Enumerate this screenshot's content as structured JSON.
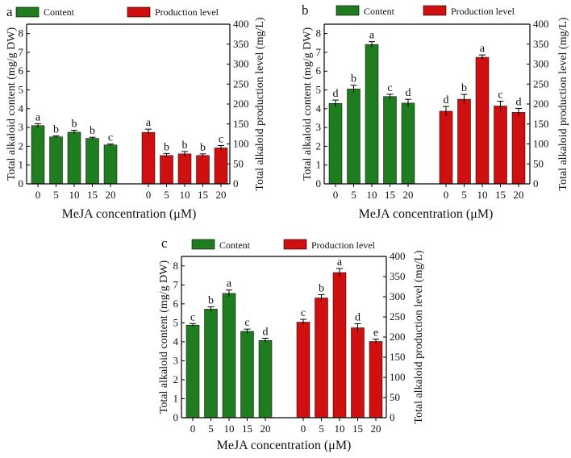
{
  "colors": {
    "content": "#1f7d1f",
    "production": "#d01010",
    "axis": "#000000"
  },
  "legend": {
    "content_label": "Content",
    "production_label": "Production level"
  },
  "x_axis_label": "MeJA  concentration (μM)",
  "left_axis_label": "Total alkaloid content (mg/g DW)",
  "right_axis_label": "Total alkaloid production level (mg/L)",
  "chart_data": [
    {
      "panel": "a",
      "type": "bar",
      "categories": [
        "0",
        "5",
        "10",
        "15",
        "20"
      ],
      "xlabel": "MeJA  concentration (μM)",
      "ylabel_left": "Total alkaloid content (mg/g DW)",
      "ylabel_right": "Total alkaloid production level (mg/L)",
      "ylim_left": [
        0,
        8.5
      ],
      "ylim_right": [
        0,
        400
      ],
      "yticks_left": [
        "0",
        "1",
        "2",
        "3",
        "4",
        "5",
        "6",
        "7",
        "8"
      ],
      "yticks_right": [
        "0",
        "50",
        "100",
        "150",
        "200",
        "250",
        "300",
        "350",
        "400"
      ],
      "series": [
        {
          "name": "Content",
          "axis": "left",
          "values": [
            3.1,
            2.5,
            2.75,
            2.42,
            2.07
          ],
          "errors": [
            0.1,
            0.05,
            0.1,
            0.06,
            0.05
          ],
          "labels": [
            "a",
            "b",
            "b",
            "b",
            "c"
          ]
        },
        {
          "name": "Production level",
          "axis": "right",
          "values": [
            129,
            71,
            75,
            71,
            90
          ],
          "errors": [
            8,
            5,
            6,
            4,
            6
          ],
          "labels": [
            "a",
            "b",
            "b",
            "b",
            "c"
          ]
        }
      ]
    },
    {
      "panel": "b",
      "type": "bar",
      "categories": [
        "0",
        "5",
        "10",
        "15",
        "20"
      ],
      "xlabel": "MeJA  concentration (μM)",
      "ylabel_left": "Total alkaloid content (mg/g DW)",
      "ylabel_right": "Total alkaloid production level (mg/L)",
      "ylim_left": [
        0,
        8.5
      ],
      "ylim_right": [
        0,
        400
      ],
      "yticks_left": [
        "0",
        "1",
        "2",
        "3",
        "4",
        "5",
        "6",
        "7",
        "8"
      ],
      "yticks_right": [
        "0",
        "50",
        "100",
        "150",
        "200",
        "250",
        "300",
        "350",
        "400"
      ],
      "series": [
        {
          "name": "Content",
          "axis": "left",
          "values": [
            4.28,
            5.05,
            7.42,
            4.65,
            4.3
          ],
          "errors": [
            0.18,
            0.2,
            0.15,
            0.12,
            0.2
          ],
          "labels": [
            "d",
            "b",
            "a",
            "c",
            "d"
          ]
        },
        {
          "name": "Production level",
          "axis": "right",
          "values": [
            182,
            212,
            317,
            195,
            179
          ],
          "errors": [
            12,
            12,
            6,
            12,
            10
          ],
          "labels": [
            "d",
            "b",
            "a",
            "c",
            "d"
          ]
        }
      ]
    },
    {
      "panel": "c",
      "type": "bar",
      "categories": [
        "0",
        "5",
        "10",
        "15",
        "20"
      ],
      "xlabel": "MeJA  concentration (μM)",
      "ylabel_left": "Total alkaloid content (mg/g DW)",
      "ylabel_right": "Total alkaloid production level (mg/L)",
      "ylim_left": [
        0,
        8.5
      ],
      "ylim_right": [
        0,
        400
      ],
      "yticks_left": [
        "0",
        "1",
        "2",
        "3",
        "4",
        "5",
        "6",
        "7",
        "8"
      ],
      "yticks_right": [
        "0",
        "50",
        "100",
        "150",
        "200",
        "250",
        "300",
        "350",
        "400"
      ],
      "series": [
        {
          "name": "Content",
          "axis": "left",
          "values": [
            4.88,
            5.72,
            6.55,
            4.55,
            4.07
          ],
          "errors": [
            0.08,
            0.12,
            0.18,
            0.12,
            0.12
          ],
          "labels": [
            "c",
            "b",
            "a",
            "c",
            "d"
          ]
        },
        {
          "name": "Production level",
          "axis": "right",
          "values": [
            237,
            297,
            360,
            223,
            189
          ],
          "errors": [
            7,
            8,
            10,
            10,
            6
          ],
          "labels": [
            "c",
            "b",
            "a",
            "d",
            "e"
          ]
        }
      ]
    }
  ]
}
